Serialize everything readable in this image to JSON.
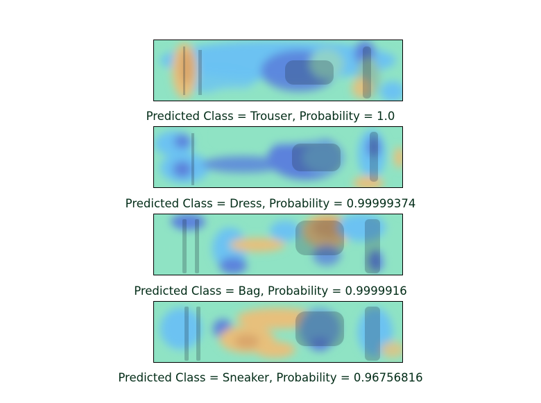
{
  "panels": [
    {
      "caption": "Predicted Class = Trouser, Probability = 1.0"
    },
    {
      "caption": "Predicted Class = Dress, Probability = 0.99999374"
    },
    {
      "caption": "Predicted Class = Bag, Probability = 0.9999916"
    },
    {
      "caption": "Predicted Class = Sneaker, Probability = 0.96756816"
    }
  ],
  "colors": {
    "base": "#8fe3c4",
    "cool": "#6cc2f2",
    "cold": "#5b82dc",
    "warm": "#e7c07c",
    "hot": "#d9a56b",
    "caption": "#002b16"
  }
}
